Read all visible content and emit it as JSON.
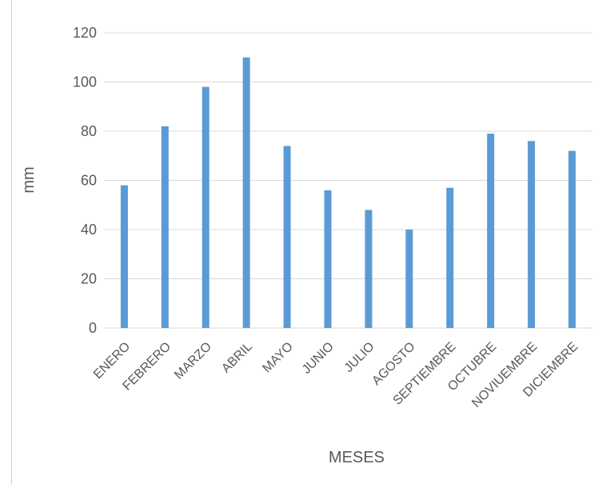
{
  "chart_data": {
    "type": "bar",
    "categories": [
      "ENERO",
      "FEBRERO",
      "MARZO",
      "ABRIL",
      "MAYO",
      "JUNIO",
      "JULIO",
      "AGOSTO",
      "SEPTIEMBRE",
      "OCTUBRE",
      "NOVIUEMBRE",
      "DICIEMBRE"
    ],
    "values": [
      58,
      82,
      98,
      110,
      74,
      56,
      48,
      40,
      57,
      79,
      76,
      72
    ],
    "title": "",
    "xlabel": "MESES",
    "ylabel": "mm",
    "ylim": [
      0,
      120
    ],
    "yticks": [
      "0",
      "20",
      "40",
      "60",
      "80",
      "100",
      "120"
    ],
    "grid": true,
    "legend": "none",
    "colors": {
      "bar": "#5b9bd5",
      "grid": "#d9d9d9",
      "text": "#595959"
    }
  }
}
